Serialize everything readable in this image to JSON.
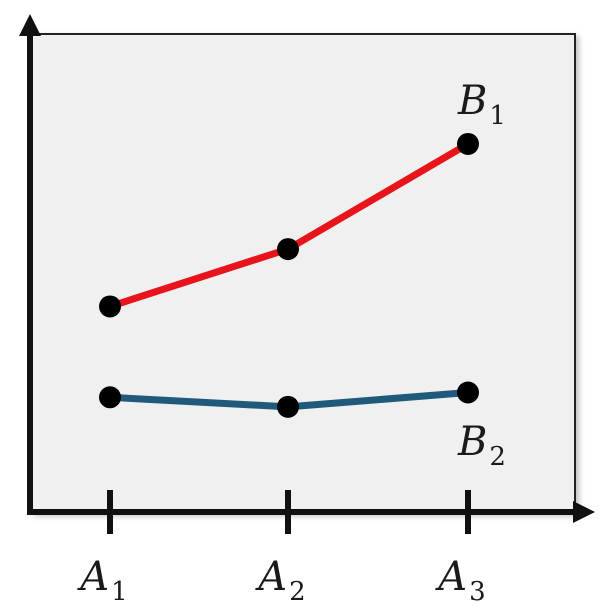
{
  "chart_data": {
    "type": "line",
    "title": "",
    "xlabel": "",
    "ylabel": "",
    "grid": false,
    "categories": [
      {
        "base": "A",
        "sub": "1"
      },
      {
        "base": "A",
        "sub": "2"
      },
      {
        "base": "A",
        "sub": "3"
      }
    ],
    "ylim": [
      0,
      10
    ],
    "series": [
      {
        "name_base": "B",
        "name_sub": "1",
        "color": "#e8141b",
        "values": [
          4.3,
          5.5,
          7.7
        ]
      },
      {
        "name_base": "B",
        "name_sub": "2",
        "color": "#1f5a7a",
        "values": [
          2.4,
          2.2,
          2.5
        ]
      }
    ],
    "colors": {
      "background": "#f0f0f0",
      "axis": "#111111",
      "marker": "#000000"
    }
  }
}
